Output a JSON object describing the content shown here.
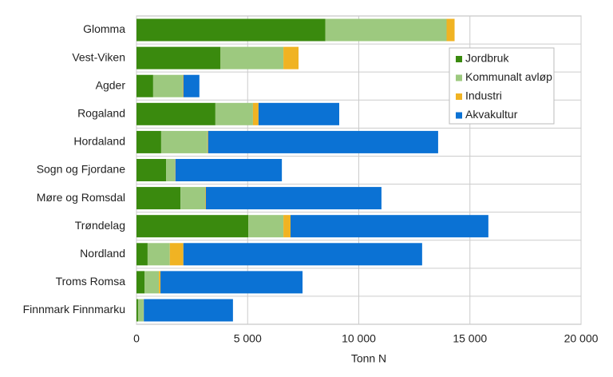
{
  "chart_data": {
    "type": "stacked-barh",
    "xlabel": "Tonn N",
    "categories": [
      "Glomma",
      "Vest-Viken",
      "Agder",
      "Rogaland",
      "Hordaland",
      "Sogn og Fjordane",
      "Møre og Romsdal",
      "Trøndelag",
      "Nordland",
      "Troms Romsa",
      "Finnmark Finnmarku"
    ],
    "series": [
      {
        "name": "Jordbruk",
        "color": "#3a8a0e",
        "values": [
          8500,
          3770,
          750,
          3550,
          1110,
          1330,
          1980,
          5030,
          500,
          360,
          70
        ]
      },
      {
        "name": "Kommunalt avløp",
        "color": "#9dc97f",
        "values": [
          5450,
          2840,
          1330,
          1690,
          2080,
          400,
          1110,
          1580,
          1000,
          650,
          250
        ]
      },
      {
        "name": "Industri",
        "color": "#f0b323",
        "values": [
          360,
          680,
          30,
          250,
          30,
          20,
          30,
          320,
          610,
          70,
          10
        ]
      },
      {
        "name": "Akvakultur",
        "color": "#0b72d4",
        "values": [
          0,
          0,
          720,
          3630,
          10350,
          4790,
          7900,
          8900,
          10740,
          6390,
          4010
        ]
      }
    ],
    "xlim": [
      0,
      20000
    ],
    "xticks": [
      0,
      {
        "value": 5000,
        "label": "5 000"
      },
      {
        "value": 10000,
        "label": "10 000"
      },
      {
        "value": 15000,
        "label": "15 000"
      },
      {
        "value": 20000,
        "label": "20 000"
      }
    ],
    "grid": true,
    "legend": "upper-right"
  }
}
